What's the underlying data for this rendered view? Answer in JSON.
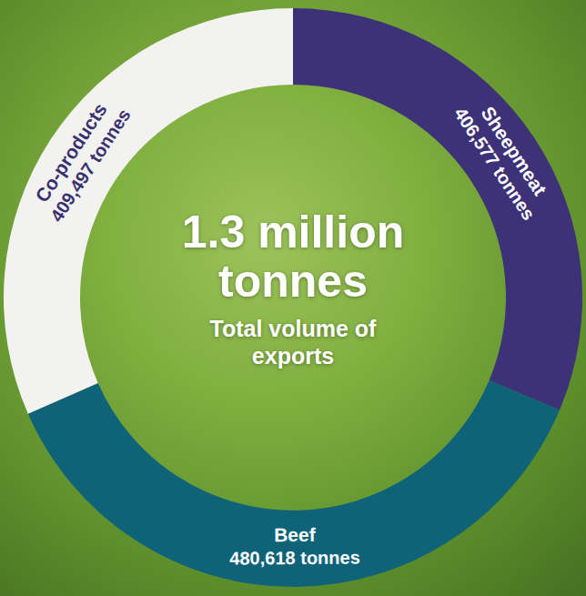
{
  "chart_data": {
    "type": "donut",
    "title": "1.3 million tonnes",
    "subtitle": "Total volume of exports",
    "categories": [
      "Sheepmeat",
      "Beef",
      "Co-products"
    ],
    "values": [
      406577,
      480618,
      409497
    ],
    "value_labels": [
      "406,577 tonnes",
      "480,618 tonnes",
      "409,497 tonnes"
    ],
    "colors": [
      "#3d3177",
      "#0e6379",
      "#f2f2f0"
    ],
    "data_labels": true
  }
}
